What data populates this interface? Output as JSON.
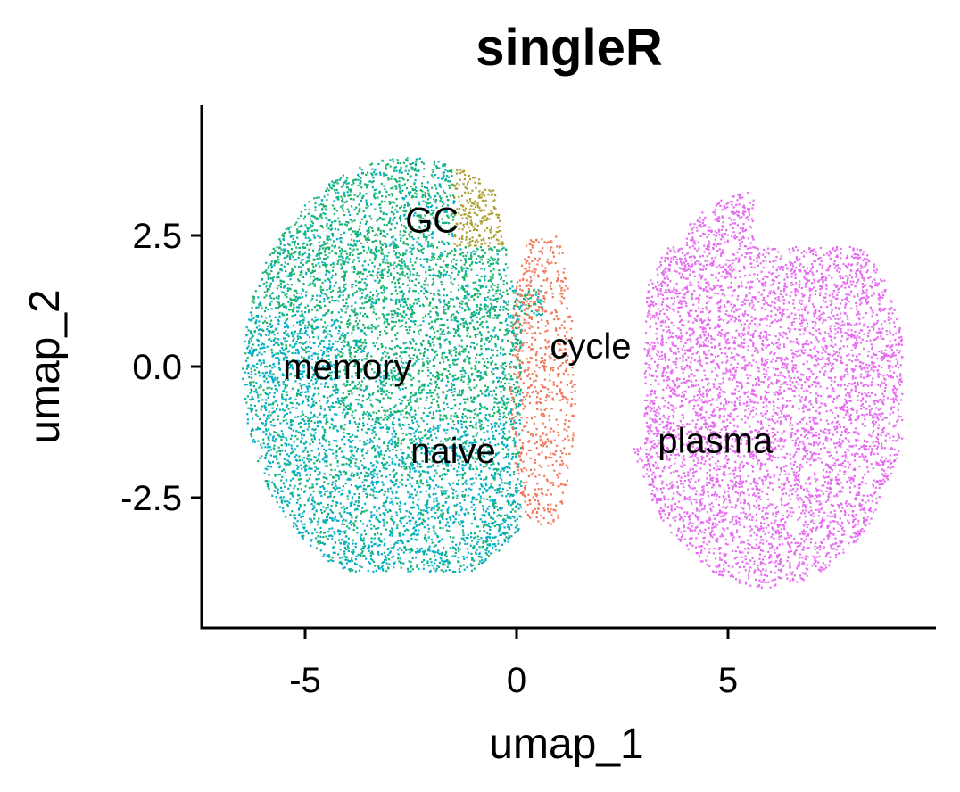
{
  "chart_data": {
    "type": "scatter",
    "title": "singleR",
    "xlabel": "umap_1",
    "ylabel": "umap_2",
    "xlim": [
      -7.5,
      10
    ],
    "ylim": [
      -5,
      5
    ],
    "x_ticks": [
      {
        "value": -5,
        "label": "-5"
      },
      {
        "value": 0,
        "label": "0"
      },
      {
        "value": 5,
        "label": "5"
      }
    ],
    "y_ticks": [
      {
        "value": 2.5,
        "label": "2.5"
      },
      {
        "value": 0.0,
        "label": "0.0"
      },
      {
        "value": -2.5,
        "label": "-2.5"
      }
    ],
    "grid": false,
    "legend": "none",
    "clusters": [
      {
        "name": "memory",
        "label_x": -4.0,
        "label_y": 0.0,
        "color": "#00B0C8"
      },
      {
        "name": "naive",
        "label_x": -1.5,
        "label_y": -1.6,
        "color": "#17B26E"
      },
      {
        "name": "GC",
        "label_x": -2.0,
        "label_y": 2.8,
        "color": "#AAA030"
      },
      {
        "name": "cycle",
        "label_x": 1.75,
        "label_y": 0.4,
        "color": "#F0785A"
      },
      {
        "name": "plasma",
        "label_x": 4.7,
        "label_y": -1.4,
        "color": "#E66BF0"
      }
    ]
  }
}
